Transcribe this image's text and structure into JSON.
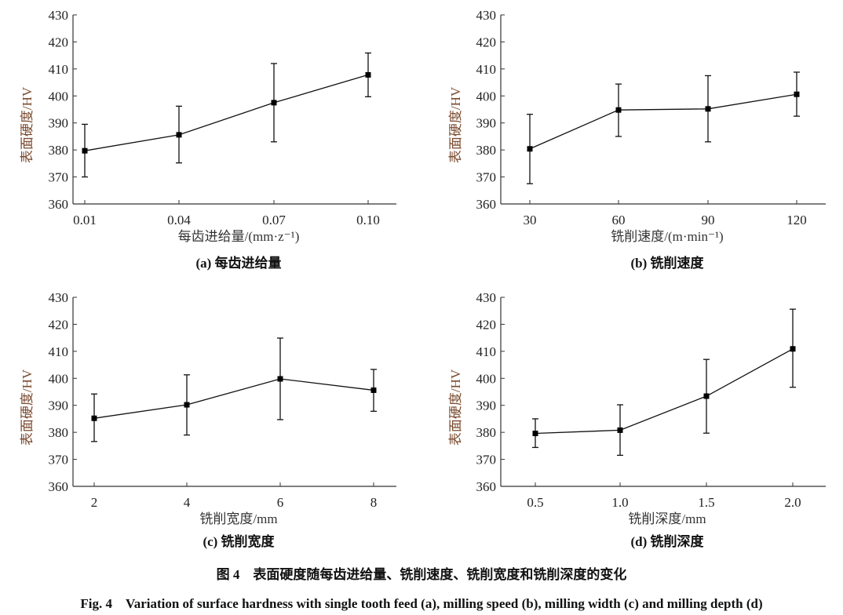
{
  "chart_data": [
    {
      "type": "line",
      "panel_label": "(a) 每齿进给量",
      "xlabel": "每齿进给量/(mm·z⁻¹)",
      "ylabel": "表面硬度/HV",
      "categories": [
        "0.01",
        "0.04",
        "0.07",
        "0.10"
      ],
      "values": [
        379.7,
        385.6,
        397.5,
        407.8
      ],
      "error_low": [
        370.0,
        375.2,
        383.0,
        399.7
      ],
      "error_high": [
        389.5,
        396.2,
        412.0,
        415.9
      ],
      "ylim": [
        360,
        430
      ],
      "yticks": [
        "360",
        "370",
        "380",
        "390",
        "400",
        "410",
        "420",
        "430"
      ],
      "grid": false
    },
    {
      "type": "line",
      "panel_label": "(b) 铣削速度",
      "xlabel": "铣削速度/(m·min⁻¹)",
      "ylabel": "表面硬度/HV",
      "categories": [
        "30",
        "60",
        "90",
        "120"
      ],
      "values": [
        380.4,
        394.8,
        395.2,
        400.6
      ],
      "error_low": [
        367.5,
        385.0,
        383.0,
        392.5
      ],
      "error_high": [
        393.2,
        404.4,
        407.5,
        408.8
      ],
      "ylim": [
        360,
        430
      ],
      "yticks": [
        "360",
        "370",
        "380",
        "390",
        "400",
        "410",
        "420",
        "430"
      ],
      "grid": false
    },
    {
      "type": "line",
      "panel_label": "(c) 铣削宽度",
      "xlabel": "铣削宽度/mm",
      "ylabel": "表面硬度/HV",
      "categories": [
        "2",
        "4",
        "6",
        "8"
      ],
      "values": [
        385.2,
        390.2,
        399.8,
        395.6
      ],
      "error_low": [
        376.6,
        379.0,
        384.7,
        387.8
      ],
      "error_high": [
        394.2,
        401.3,
        414.9,
        403.3
      ],
      "ylim": [
        360,
        430
      ],
      "yticks": [
        "360",
        "370",
        "380",
        "390",
        "400",
        "410",
        "420",
        "430"
      ],
      "grid": false
    },
    {
      "type": "line",
      "panel_label": "(d) 铣削深度",
      "xlabel": "铣削深度/mm",
      "ylabel": "表面硬度/HV",
      "categories": [
        "0.5",
        "1.0",
        "1.5",
        "2.0"
      ],
      "values": [
        379.6,
        380.8,
        393.4,
        410.9
      ],
      "error_low": [
        374.4,
        371.5,
        379.7,
        396.7
      ],
      "error_high": [
        385.0,
        390.2,
        407.0,
        425.6
      ],
      "ylim": [
        360,
        430
      ],
      "yticks": [
        "360",
        "370",
        "380",
        "390",
        "400",
        "410",
        "420",
        "430"
      ],
      "grid": false
    }
  ],
  "caption_cn": "图 4　表面硬度随每齿进给量、铣削速度、铣削宽度和铣削深度的变化",
  "caption_en": "Fig. 4　Variation of surface hardness with single tooth feed (a), milling speed (b), milling width (c) and milling depth (d)"
}
